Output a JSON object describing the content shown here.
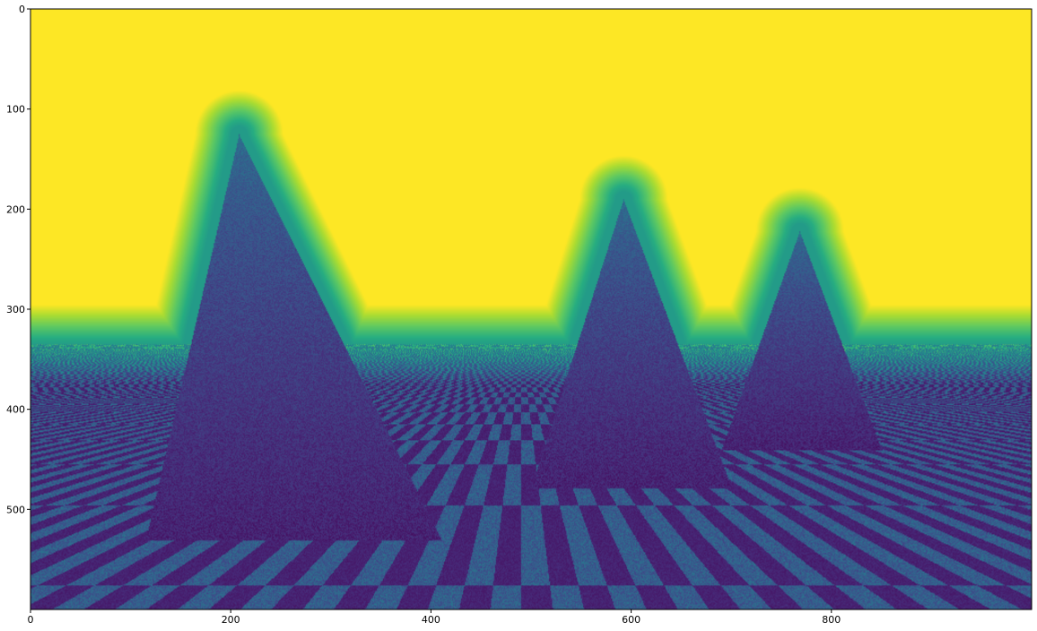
{
  "chart_data": {
    "type": "heatmap",
    "title": "",
    "xlabel": "",
    "ylabel": "",
    "colormap": "viridis",
    "image_size": {
      "width": 1000,
      "height": 600
    },
    "xlim": [
      0,
      1000
    ],
    "ylim": [
      600,
      0
    ],
    "xticks": [
      0,
      200,
      400,
      600,
      800
    ],
    "yticks": [
      0,
      100,
      200,
      300,
      400,
      500
    ],
    "xtick_labels": [
      "0",
      "200",
      "400",
      "600",
      "800"
    ],
    "ytick_labels": [
      "0",
      "100",
      "200",
      "300",
      "400",
      "500"
    ],
    "horizon_y": 335,
    "scene": {
      "description_values": "depth-like image: bright (yellow) sky, dark (purple) cones, checkered floor in perspective",
      "cones": [
        {
          "apex": [
            208,
            125
          ],
          "base_y": 530,
          "base_x_range": [
            115,
            410
          ]
        },
        {
          "apex": [
            592,
            190
          ],
          "base_y": 478,
          "base_x_range": [
            500,
            700
          ]
        },
        {
          "apex": [
            768,
            222
          ],
          "base_y": 440,
          "base_x_range": [
            690,
            850
          ]
        }
      ],
      "floor": {
        "type": "checkerboard",
        "vanishing_point": [
          490,
          335
        ],
        "tile_world_size": 1
      }
    },
    "grid": false,
    "legend": "none"
  }
}
